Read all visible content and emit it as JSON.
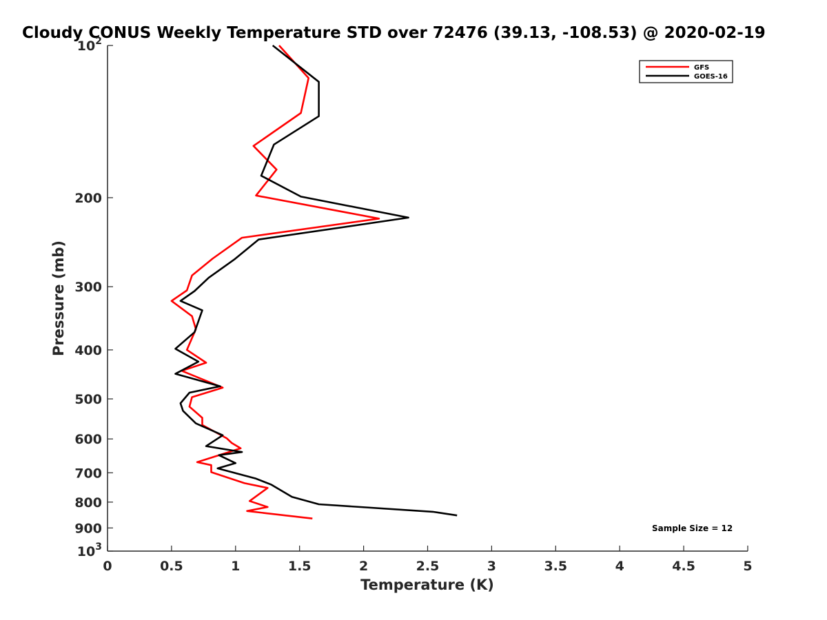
{
  "chart_data": {
    "type": "line",
    "title": "Cloudy CONUS Weekly Temperature STD over 72476 (39.13, -108.53) @ 2020-02-19",
    "xlabel": "Temperature (K)",
    "ylabel": "Pressure (mb)",
    "xlim": [
      0,
      5
    ],
    "ylim": [
      100,
      1000
    ],
    "y_scale": "log",
    "y_reversed": true,
    "grid": false,
    "legend_position": "top-right",
    "x_ticks": [
      0,
      0.5,
      1,
      1.5,
      2,
      2.5,
      3,
      3.5,
      4,
      4.5,
      5
    ],
    "x_tick_labels": [
      "0",
      "0.5",
      "1",
      "1.5",
      "2",
      "2.5",
      "3",
      "3.5",
      "4",
      "4.5",
      "5"
    ],
    "y_ticks": [
      100,
      200,
      300,
      400,
      500,
      600,
      700,
      800,
      900,
      1000
    ],
    "y_tick_labels": [
      {
        "base": "10",
        "sup": "2"
      },
      {
        "base": "200",
        "sup": ""
      },
      {
        "base": "300",
        "sup": ""
      },
      {
        "base": "400",
        "sup": ""
      },
      {
        "base": "500",
        "sup": ""
      },
      {
        "base": "600",
        "sup": ""
      },
      {
        "base": "700",
        "sup": ""
      },
      {
        "base": "800",
        "sup": ""
      },
      {
        "base": "900",
        "sup": ""
      },
      {
        "base": "10",
        "sup": "3"
      }
    ],
    "annotation": "Sample Size = 12",
    "series": [
      {
        "name": "GFS",
        "color": "#ff0000",
        "points": [
          [
            1.34,
            100
          ],
          [
            1.57,
            116
          ],
          [
            1.51,
            136
          ],
          [
            1.14,
            158
          ],
          [
            1.32,
            176
          ],
          [
            1.16,
            198
          ],
          [
            2.12,
            220
          ],
          [
            1.05,
            240
          ],
          [
            0.82,
            264
          ],
          [
            0.66,
            285
          ],
          [
            0.62,
            305
          ],
          [
            0.5,
            320
          ],
          [
            0.66,
            343
          ],
          [
            0.69,
            364
          ],
          [
            0.62,
            400
          ],
          [
            0.77,
            424
          ],
          [
            0.58,
            440
          ],
          [
            0.9,
            475
          ],
          [
            0.66,
            496
          ],
          [
            0.64,
            518
          ],
          [
            0.74,
            545
          ],
          [
            0.74,
            563
          ],
          [
            0.93,
            598
          ],
          [
            0.97,
            611
          ],
          [
            1.04,
            626
          ],
          [
            0.7,
            667
          ],
          [
            0.81,
            676
          ],
          [
            0.81,
            698
          ],
          [
            1.07,
            734
          ],
          [
            1.25,
            750
          ],
          [
            1.11,
            796
          ],
          [
            1.25,
            818
          ],
          [
            1.09,
            833
          ],
          [
            1.6,
            862
          ]
        ]
      },
      {
        "name": "GOES-16",
        "color": "#000000",
        "points": [
          [
            1.29,
            100
          ],
          [
            1.65,
            118
          ],
          [
            1.65,
            138
          ],
          [
            1.3,
            157
          ],
          [
            1.2,
            181
          ],
          [
            1.51,
            199
          ],
          [
            2.35,
            219
          ],
          [
            1.18,
            242
          ],
          [
            0.99,
            265
          ],
          [
            0.79,
            288
          ],
          [
            0.68,
            306
          ],
          [
            0.57,
            320
          ],
          [
            0.74,
            334
          ],
          [
            0.68,
            369
          ],
          [
            0.53,
            398
          ],
          [
            0.71,
            422
          ],
          [
            0.53,
            446
          ],
          [
            0.88,
            472
          ],
          [
            0.64,
            486
          ],
          [
            0.57,
            510
          ],
          [
            0.59,
            528
          ],
          [
            0.69,
            559
          ],
          [
            0.9,
            590
          ],
          [
            0.77,
            620
          ],
          [
            1.05,
            637
          ],
          [
            0.87,
            646
          ],
          [
            1.0,
            670
          ],
          [
            0.86,
            686
          ],
          [
            1.16,
            719
          ],
          [
            1.28,
            739
          ],
          [
            1.33,
            752
          ],
          [
            1.44,
            781
          ],
          [
            1.65,
            808
          ],
          [
            2.54,
            836
          ],
          [
            2.73,
            850
          ]
        ]
      }
    ]
  }
}
